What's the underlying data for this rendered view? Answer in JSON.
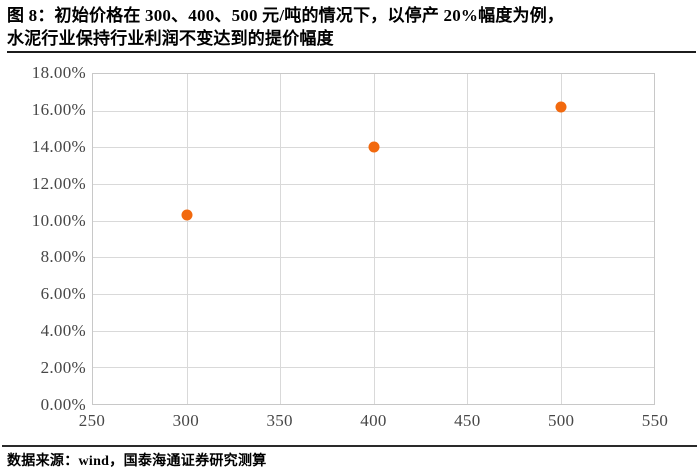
{
  "header": {
    "title_lines": [
      "图 8：初始价格在 300、400、500 元/吨的情况下，以停产 20%幅度为例，",
      "水泥行业保持行业利润不变达到的提价幅度"
    ]
  },
  "footer": {
    "source": "数据来源：wind，国泰海通证券研究测算"
  },
  "chart_data": {
    "type": "scatter",
    "title": "初始价格在 300、400、500 元/吨的情况下，以停产 20%幅度为例，水泥行业保持行业利润不变达到的提价幅度",
    "xlabel": "",
    "ylabel": "",
    "x": [
      300,
      400,
      500
    ],
    "y_percent": [
      10.3,
      14.0,
      16.2
    ],
    "xlim": [
      250,
      550
    ],
    "ylim_percent": [
      0,
      18
    ],
    "x_ticks": [
      {
        "value": 250,
        "label": "250"
      },
      {
        "value": 300,
        "label": "300"
      },
      {
        "value": 350,
        "label": "350"
      },
      {
        "value": 400,
        "label": "400"
      },
      {
        "value": 450,
        "label": "450"
      },
      {
        "value": 500,
        "label": "500"
      },
      {
        "value": 550,
        "label": "550"
      }
    ],
    "y_ticks": [
      {
        "value": 0,
        "label": "0.00%"
      },
      {
        "value": 2,
        "label": "2.00%"
      },
      {
        "value": 4,
        "label": "4.00%"
      },
      {
        "value": 6,
        "label": "6.00%"
      },
      {
        "value": 8,
        "label": "8.00%"
      },
      {
        "value": 10,
        "label": "10.00%"
      },
      {
        "value": 12,
        "label": "12.00%"
      },
      {
        "value": 14,
        "label": "14.00%"
      },
      {
        "value": 16,
        "label": "16.00%"
      },
      {
        "value": 18,
        "label": "18.00%"
      }
    ],
    "grid": true,
    "legend": "none",
    "marker_color": "#F2690E"
  }
}
